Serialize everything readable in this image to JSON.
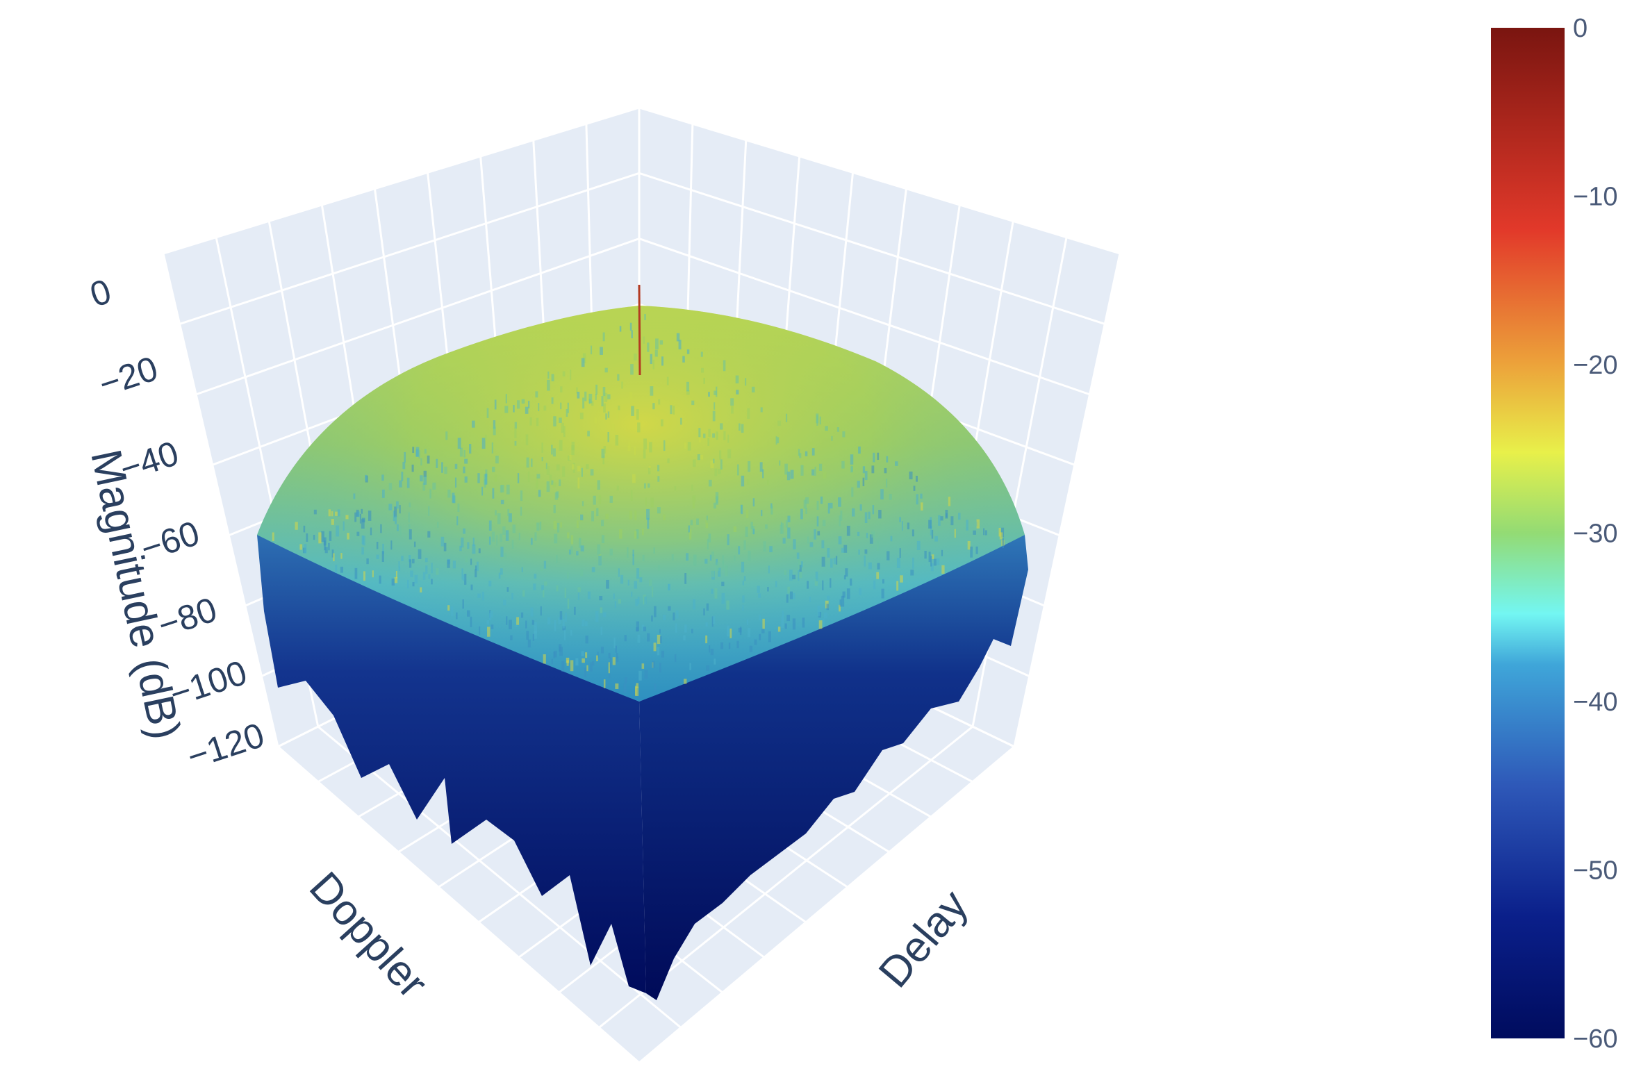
{
  "chart_data": {
    "type": "surface",
    "title": "",
    "axes": {
      "x": {
        "label": "Doppler"
      },
      "y": {
        "label": "Delay"
      },
      "z": {
        "label": "Magnitude (dB)",
        "ticks": [
          "0",
          "−20",
          "−40",
          "−60",
          "−80",
          "−100",
          "−120"
        ],
        "range": [
          -120,
          0
        ]
      }
    },
    "surface": {
      "description_level": "plateau",
      "plateau_center_db": -25,
      "plateau_edge_db": -40,
      "peak_db": -8,
      "floor_db": -120
    },
    "colorbar": {
      "colorscale": "jet",
      "range": [
        -60,
        0
      ],
      "ticks": [
        "0",
        "−10",
        "−20",
        "−30",
        "−40",
        "−50",
        "−60"
      ],
      "stops": [
        {
          "offset": 0.0,
          "color": "#000c5e"
        },
        {
          "offset": 0.12,
          "color": "#0a1f8a"
        },
        {
          "offset": 0.25,
          "color": "#2e58b8"
        },
        {
          "offset": 0.37,
          "color": "#3fa6d9"
        },
        {
          "offset": 0.42,
          "color": "#73f6f2"
        },
        {
          "offset": 0.5,
          "color": "#93db74"
        },
        {
          "offset": 0.58,
          "color": "#e8f04a"
        },
        {
          "offset": 0.67,
          "color": "#eca03a"
        },
        {
          "offset": 0.8,
          "color": "#e2392a"
        },
        {
          "offset": 1.0,
          "color": "#7a1510"
        }
      ]
    },
    "grid": true,
    "background": "#e5ecf6"
  }
}
